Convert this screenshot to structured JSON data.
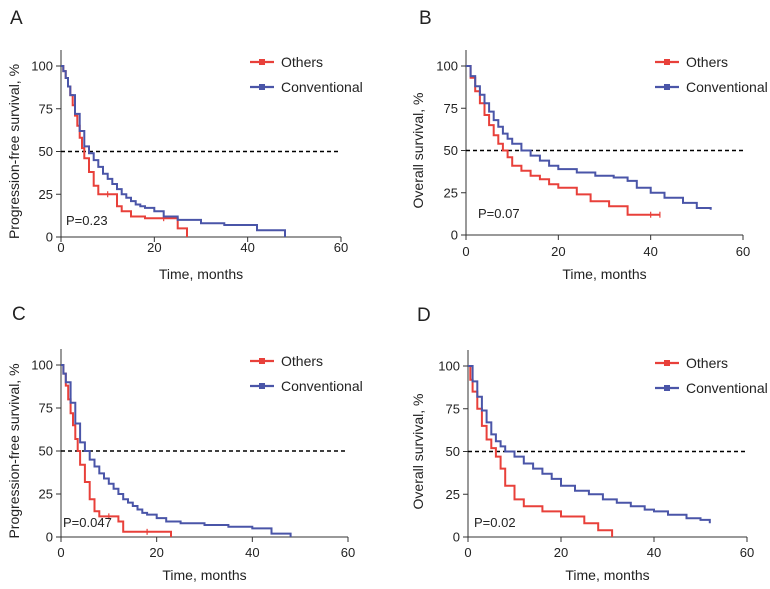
{
  "colors": {
    "others": "#e8403a",
    "conventional": "#4a55a8",
    "axis": "#333333",
    "reference": "#000000"
  },
  "chart_data": [
    {
      "type": "line",
      "panel": "A",
      "xlabel": "Time, months",
      "ylabel": "Progression-free survival, %",
      "xlim": [
        0,
        60
      ],
      "ylim": [
        0,
        100
      ],
      "xticks": [
        0,
        20,
        40,
        60
      ],
      "yticks": [
        0,
        25,
        50,
        75,
        100
      ],
      "reference_line": 50,
      "legend": [
        "Others",
        "Conventional"
      ],
      "annotation": "P=0.23",
      "series": [
        {
          "name": "Others",
          "color": "#e8403a",
          "x": [
            0,
            0.5,
            1,
            1.5,
            2,
            2.5,
            3,
            3.5,
            4,
            4.5,
            5,
            6,
            7,
            8,
            10,
            12,
            13,
            15,
            18,
            22,
            25,
            27
          ],
          "y": [
            100,
            97,
            93,
            88,
            83,
            77,
            71,
            65,
            58,
            52,
            46,
            38,
            30,
            25,
            25,
            18,
            15,
            12,
            11,
            11,
            5,
            0
          ]
        },
        {
          "name": "Conventional",
          "color": "#4a55a8",
          "x": [
            0,
            0.5,
            1,
            1.5,
            2,
            3,
            4,
            5,
            6,
            7,
            8,
            9,
            10,
            11,
            12,
            13,
            14,
            15,
            16,
            17,
            18,
            20,
            22,
            25,
            30,
            35,
            42,
            48
          ],
          "y": [
            100,
            97,
            93,
            88,
            83,
            72,
            62,
            53,
            49,
            45,
            41,
            37,
            34,
            31,
            28,
            25,
            23,
            21,
            19,
            18,
            17,
            15,
            12,
            10,
            8,
            7,
            4,
            0
          ]
        }
      ]
    },
    {
      "type": "line",
      "panel": "B",
      "xlabel": "Time, months",
      "ylabel": "Overall survival, %",
      "xlim": [
        0,
        60
      ],
      "ylim": [
        0,
        100
      ],
      "xticks": [
        0,
        20,
        40,
        60
      ],
      "yticks": [
        0,
        25,
        50,
        75,
        100
      ],
      "reference_line": 50,
      "legend": [
        "Others",
        "Conventional"
      ],
      "annotation": "P=0.07",
      "series": [
        {
          "name": "Others",
          "color": "#e8403a",
          "x": [
            0,
            1,
            2,
            3,
            4,
            5,
            6,
            7,
            8,
            9,
            10,
            12,
            14,
            16,
            18,
            20,
            24,
            27,
            31,
            35,
            40,
            42
          ],
          "y": [
            100,
            93,
            85,
            78,
            71,
            65,
            59,
            54,
            50,
            46,
            41,
            38,
            35,
            33,
            30,
            28,
            24,
            20,
            17,
            12,
            12,
            12
          ]
        },
        {
          "name": "Conventional",
          "color": "#4a55a8",
          "x": [
            0,
            1,
            2,
            3,
            4,
            5,
            6,
            7,
            8,
            9,
            10,
            12,
            14,
            16,
            18,
            20,
            24,
            28,
            32,
            35,
            37,
            40,
            43,
            47,
            50,
            53
          ],
          "y": [
            100,
            94,
            88,
            83,
            78,
            73,
            68,
            64,
            60,
            57,
            54,
            50,
            47,
            44,
            41,
            39,
            37,
            35,
            34,
            32,
            28,
            25,
            22,
            19,
            16,
            15
          ]
        }
      ]
    },
    {
      "type": "line",
      "panel": "C",
      "xlabel": "Time, months",
      "ylabel": "Progression-free survival, %",
      "xlim": [
        0,
        60
      ],
      "ylim": [
        0,
        100
      ],
      "xticks": [
        0,
        20,
        40,
        60
      ],
      "yticks": [
        0,
        25,
        50,
        75,
        100
      ],
      "reference_line": 50,
      "legend": [
        "Others",
        "Conventional"
      ],
      "annotation": "P=0.047",
      "series": [
        {
          "name": "Others",
          "color": "#e8403a",
          "x": [
            0,
            0.5,
            1,
            1.5,
            2,
            2.5,
            3,
            3.5,
            4,
            5,
            6,
            7,
            8,
            10,
            12,
            13,
            18,
            23
          ],
          "y": [
            100,
            95,
            88,
            80,
            72,
            65,
            57,
            50,
            42,
            32,
            22,
            15,
            12,
            12,
            9,
            3,
            3,
            0
          ]
        },
        {
          "name": "Conventional",
          "color": "#4a55a8",
          "x": [
            0,
            0.5,
            1,
            2,
            3,
            4,
            5,
            6,
            7,
            8,
            9,
            10,
            11,
            12,
            13,
            14,
            15,
            16,
            17,
            18,
            20,
            22,
            25,
            30,
            35,
            40,
            44,
            48
          ],
          "y": [
            100,
            95,
            90,
            78,
            66,
            55,
            50,
            45,
            41,
            37,
            34,
            31,
            28,
            25,
            22,
            20,
            18,
            16,
            14,
            13,
            11,
            9,
            8,
            7,
            6,
            5,
            2,
            0
          ]
        }
      ]
    },
    {
      "type": "line",
      "panel": "D",
      "xlabel": "Time, months",
      "ylabel": "Overall survival, %",
      "xlim": [
        0,
        60
      ],
      "ylim": [
        0,
        100
      ],
      "xticks": [
        0,
        20,
        40,
        60
      ],
      "yticks": [
        0,
        25,
        50,
        75,
        100
      ],
      "reference_line": 50,
      "legend": [
        "Others",
        "Conventional"
      ],
      "annotation": "P=0.02",
      "series": [
        {
          "name": "Others",
          "color": "#e8403a",
          "x": [
            0,
            0.5,
            1,
            2,
            3,
            4,
            5,
            6,
            7,
            8,
            10,
            12,
            16,
            20,
            25,
            28,
            31
          ],
          "y": [
            100,
            92,
            85,
            75,
            65,
            57,
            52,
            47,
            40,
            30,
            22,
            18,
            15,
            12,
            8,
            4,
            0
          ]
        },
        {
          "name": "Conventional",
          "color": "#4a55a8",
          "x": [
            0,
            1,
            2,
            3,
            4,
            5,
            6,
            7,
            8,
            10,
            12,
            14,
            16,
            18,
            20,
            23,
            26,
            29,
            32,
            35,
            38,
            40,
            43,
            47,
            50,
            52
          ],
          "y": [
            100,
            91,
            82,
            74,
            67,
            60,
            56,
            53,
            50,
            47,
            43,
            40,
            37,
            34,
            30,
            27,
            25,
            22,
            20,
            18,
            16,
            15,
            13,
            11,
            10,
            8
          ]
        }
      ]
    }
  ]
}
